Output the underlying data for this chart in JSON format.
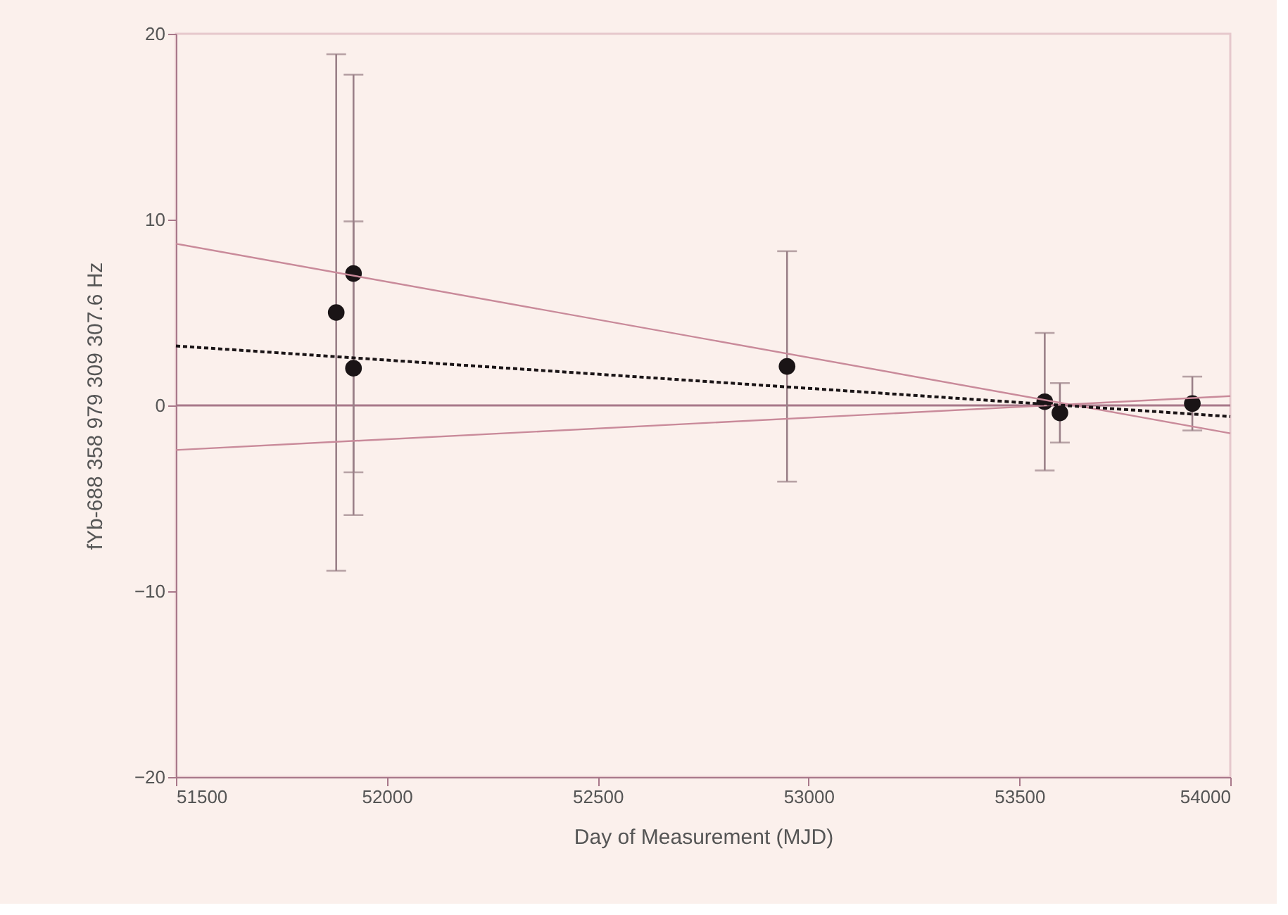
{
  "chart_data": {
    "type": "scatter",
    "xlabel": "Day of Measurement (MJD)",
    "ylabel": "fYb-688 358 979 309 307.6 Hz",
    "xlim": [
      51500,
      54000
    ],
    "xticks": [
      51500,
      52000,
      52500,
      53000,
      53500,
      54000
    ],
    "ylim": [
      -20,
      20
    ],
    "yticks": [
      -20,
      -10,
      0,
      10,
      20
    ],
    "grid": false,
    "series": [
      {
        "color": "#1a1416",
        "marker": "circle",
        "x": [
          51880,
          51921,
          51921,
          52949,
          53560,
          53596,
          53910
        ],
        "values": [
          5.0,
          7.1,
          2.0,
          2.1,
          0.2,
          -0.4,
          0.1
        ],
        "errors": [
          13.9,
          10.7,
          7.9,
          6.2,
          3.7,
          1.6,
          1.45
        ]
      },
      {
        "type": "line",
        "color": "#c98a9a",
        "line_style": "solid",
        "marker": "none",
        "x": [
          51500,
          54000
        ],
        "values": [
          8.7,
          -1.5
        ]
      },
      {
        "type": "line",
        "color": "#c98a9a",
        "line_style": "solid",
        "marker": "none",
        "x": [
          51500,
          54000
        ],
        "values": [
          -2.4,
          0.5
        ]
      },
      {
        "type": "line",
        "color": "#1a1416",
        "line_style": "dotted",
        "marker": "none",
        "x": [
          51500,
          54000
        ],
        "values": [
          3.2,
          -0.6
        ]
      }
    ],
    "ref_lines": [
      {
        "axis": "y",
        "value": 0,
        "color": "#a8788a"
      }
    ]
  }
}
